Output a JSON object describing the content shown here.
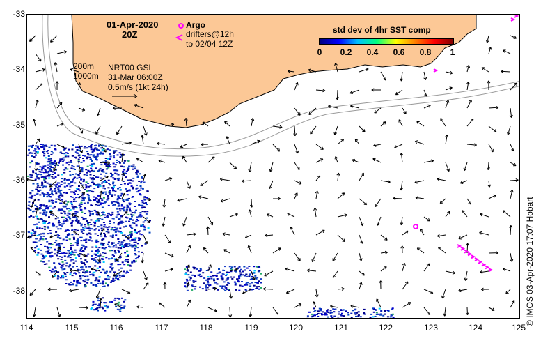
{
  "map": {
    "date_label": "01-Apr-2020",
    "time_label": "20Z",
    "depth_200": "200m",
    "depth_1000": "1000m",
    "model_label": "NRT00 GSL",
    "model_time": "31-Mar 06:00Z",
    "scale_label": "0.5m/s (1kt 24h)",
    "argo_label": "Argo",
    "drifters_label": "drifters@12h",
    "drifters_to": "to 02/04 12Z",
    "colorbar_title": "std dev of 4hr SST comp",
    "colorbar_ticks": [
      "0",
      "0.2",
      "0.4",
      "0.6",
      "0.8",
      "1"
    ],
    "credit": "© IMOS 03-Apr-2020 17:07 Hobart",
    "lat_labels": [
      "-33",
      "-34",
      "-35",
      "-36",
      "-37",
      "-38"
    ],
    "lon_labels": [
      "114",
      "115",
      "116",
      "117",
      "118",
      "119",
      "120",
      "121",
      "122",
      "123",
      "124",
      "125"
    ],
    "colors": {
      "land": "#fcc896",
      "argo": "#ff00ff",
      "drifter": "#ff00ff",
      "sst_low": "#000080",
      "sst_high": "#800000"
    },
    "lon_range": [
      114,
      125
    ],
    "lat_range": [
      -38.5,
      -33
    ]
  }
}
